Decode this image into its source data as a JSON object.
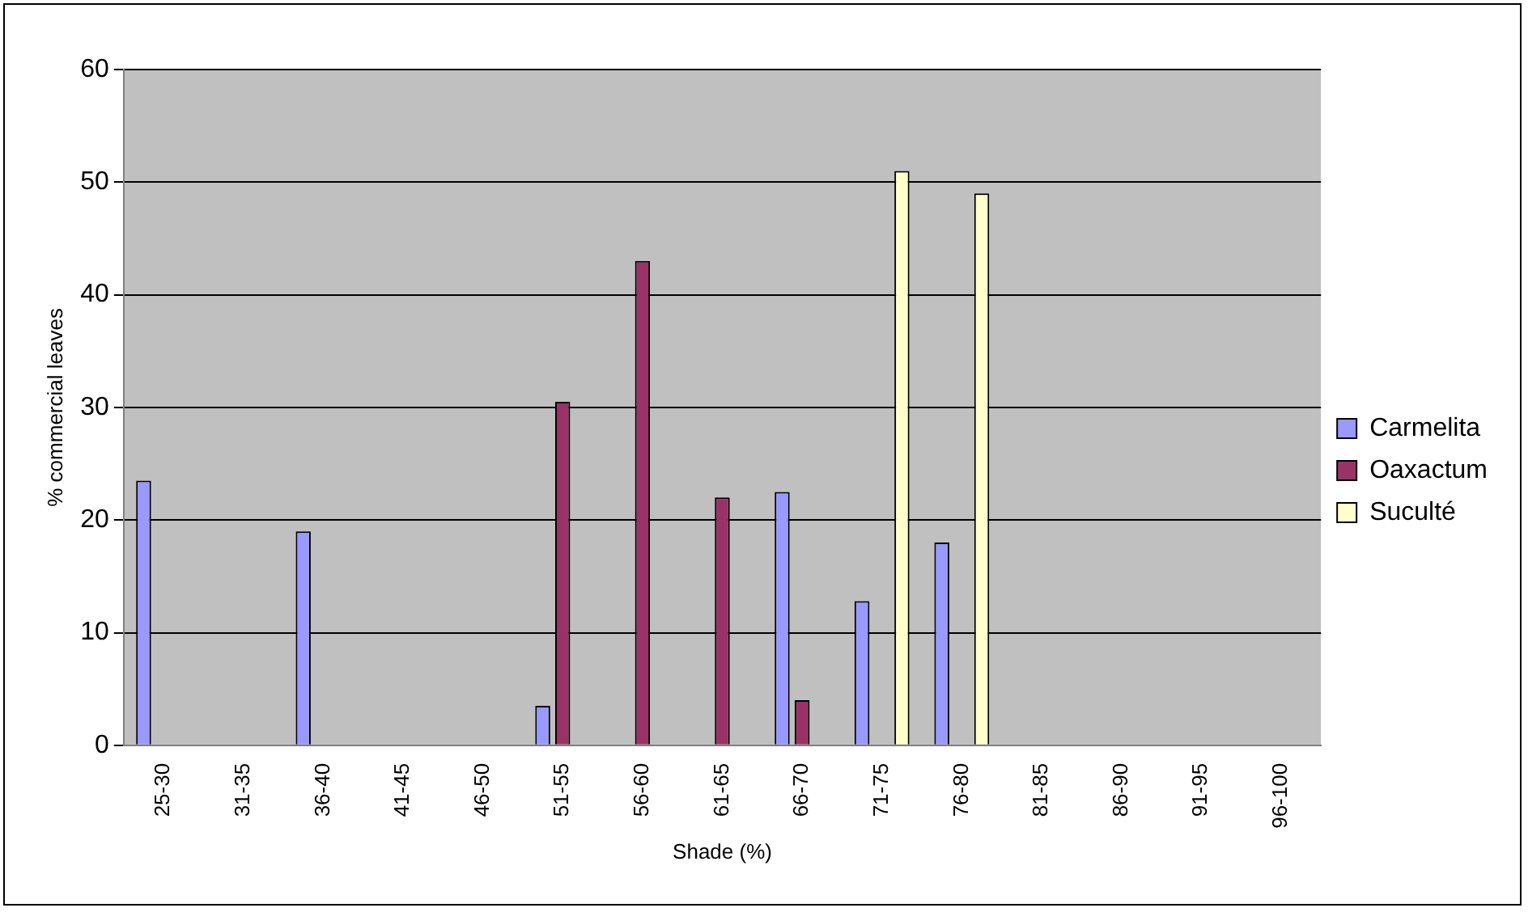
{
  "chart_data": {
    "type": "bar",
    "xlabel": "Shade (%)",
    "ylabel": "% commercial leaves",
    "categories": [
      "25-30",
      "31-35",
      "36-40",
      "41-45",
      "46-50",
      "51-55",
      "56-60",
      "61-65",
      "66-70",
      "71-75",
      "76-80",
      "81-85",
      "86-90",
      "91-95",
      "96-100"
    ],
    "series": [
      {
        "name": "Carmelita",
        "color": "#9999ff",
        "values": [
          23.5,
          0,
          19,
          0,
          0,
          3.5,
          0,
          0,
          22.5,
          12.8,
          18,
          0,
          0,
          0,
          0
        ]
      },
      {
        "name": "Oaxactum",
        "color": "#993366",
        "values": [
          0,
          0,
          0,
          0,
          0,
          30.5,
          43,
          22,
          4,
          0,
          0,
          0,
          0,
          0,
          0
        ]
      },
      {
        "name": "Suculté",
        "color": "#ffffcc",
        "values": [
          0,
          0,
          0,
          0,
          0,
          0,
          0,
          0,
          0,
          51,
          49,
          0,
          0,
          0,
          0
        ]
      }
    ],
    "ylim": [
      0,
      60
    ],
    "yticks": [
      0,
      10,
      20,
      30,
      40,
      50,
      60
    ],
    "grid": "y",
    "legend": "right"
  }
}
